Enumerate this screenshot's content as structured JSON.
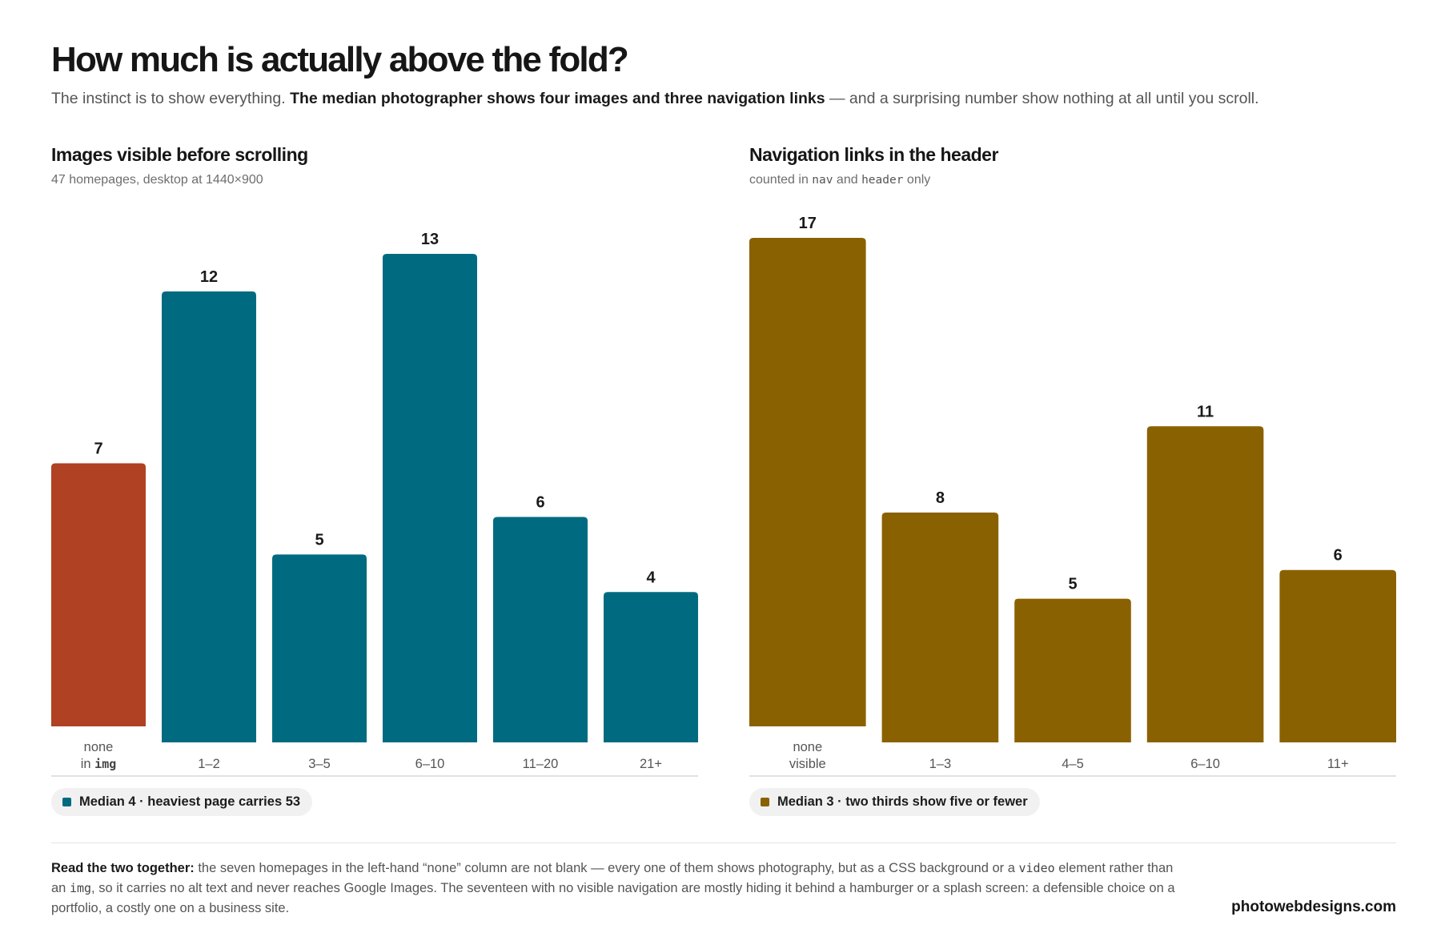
{
  "header": {
    "title": "How much is actually above the fold?",
    "subtitle_lead": "The instinct is to show everything. ",
    "subtitle_bold": "The median photographer shows four images and three navigation links",
    "subtitle_tail": " — and a surprising number show nothing at all until you scroll."
  },
  "chart_data": [
    {
      "type": "bar",
      "title": "Images visible before scrolling",
      "subtitle": "47 homepages, desktop at 1440×900",
      "categories": [
        "none in img",
        "1–2",
        "3–5",
        "6–10",
        "11–20",
        "21+"
      ],
      "values": [
        7,
        12,
        5,
        13,
        6,
        4
      ],
      "colors": [
        "#b04122",
        "#006b80",
        "#006b80",
        "#006b80",
        "#006b80",
        "#006b80"
      ],
      "ylim": [
        0,
        13
      ],
      "grid": false,
      "legend": "Median 4 · heaviest page carries 53"
    },
    {
      "type": "bar",
      "title": "Navigation links in the header",
      "subtitle": "counted in nav and header only",
      "categories": [
        "none visible",
        "1–3",
        "4–5",
        "6–10",
        "11+"
      ],
      "values": [
        17,
        8,
        5,
        11,
        6
      ],
      "colors": [
        "#8a6100",
        "#8a6100",
        "#8a6100",
        "#8a6100",
        "#8a6100"
      ],
      "ylim": [
        0,
        17
      ],
      "grid": false,
      "legend": "Median 3 · two thirds show five or fewer"
    }
  ],
  "left_chart": {
    "title": "Images visible before scrolling",
    "sub_lead": "47 homepages, desktop at 1440×900",
    "cat0_line1": "none",
    "cat0_line2_pre": "in ",
    "cat0_line2_code": "img",
    "legend": "Median 4 · heaviest page carries 53"
  },
  "right_chart": {
    "title": "Navigation links in the header",
    "sub_a": "counted in ",
    "sub_code1": "nav",
    "sub_b": " and ",
    "sub_code2": "header",
    "sub_c": " only",
    "cat0_line1": "none",
    "cat0_line2": "visible",
    "legend": "Median 3 · two thirds show five or fewer"
  },
  "footer": {
    "lead": "Read the two together:",
    "text1": " the seven homepages in the left-hand “none” column are not blank — every one of them shows photography, but as a CSS background or a ",
    "code1": "video",
    "text2": " element rather than an ",
    "code2": "img",
    "text3": ", so it carries no alt text and never reaches Google Images. The seventeen with no visible navigation are mostly hiding it behind a hamburger or a splash screen: a defensible choice on a portfolio, a costly one on a business site.",
    "brand": "photowebdesigns.com"
  }
}
